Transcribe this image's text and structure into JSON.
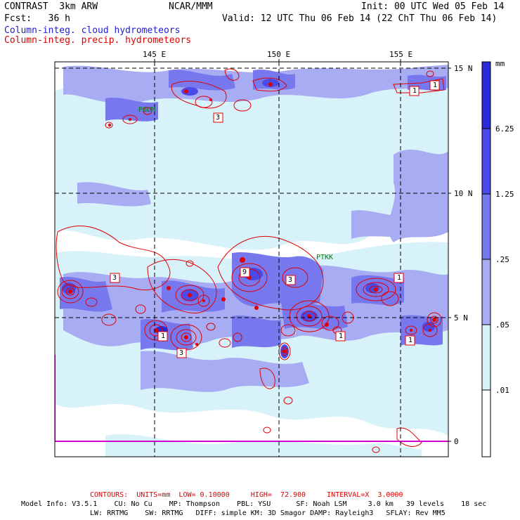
{
  "header": {
    "model": "CONTRAST  3km ARW",
    "center": "NCAR/MMM",
    "init": "Init: 00 UTC Wed 05 Feb 14",
    "fcst": "Fcst:   36 h",
    "valid": "Valid: 12 UTC Thu 06 Feb 14 (22 ChT Thu 06 Feb 14)",
    "field1": "Column-integ. cloud hydrometeors",
    "field2": "Column-integ. precip. hydrometeors"
  },
  "map": {
    "lon_labels": [
      "145 E",
      "150 E",
      "155 E"
    ],
    "lat_labels": [
      "15 N",
      "10 N",
      "5 N",
      "0"
    ],
    "stations": [
      "PGUM",
      "PTKK"
    ],
    "box_labels": [
      "1",
      "3",
      "1",
      "3",
      "9",
      "1",
      "3",
      "1",
      "1",
      "1",
      "3"
    ]
  },
  "colorbar": {
    "units": "mm",
    "levels": [
      "6.25",
      "1.25",
      ".25",
      ".05",
      ".01"
    ],
    "colors": [
      "#2a2ad8",
      "#4a4ae8",
      "#7878ee",
      "#a8acf2",
      "#d8f2fa",
      "#ffffff"
    ]
  },
  "footer": {
    "contours": "CONTOURS:  UNITS=mm  LOW= 0.10000     HIGH=  72.900     INTERVAL=X  3.0000",
    "model_info_1": "Model Info: V3.5.1    CU: No Cu    MP: Thompson    PBL: YSU      SF: Noah LSM     3.0 km   39 levels    18 sec",
    "model_info_2": "LW: RRTMG    SW: RRTMG   DIFF: simple KM: 3D Smagor DAMP: Rayleigh3   SFLAY: Rev MM5"
  }
}
